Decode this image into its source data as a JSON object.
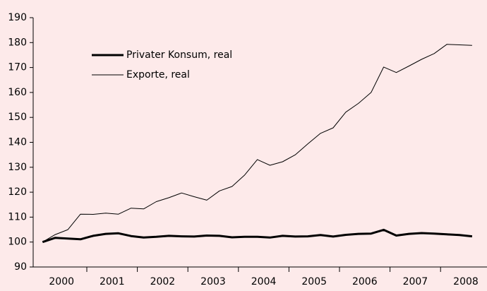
{
  "chart_data": {
    "type": "line",
    "x": [
      2000.125,
      2000.375,
      2000.625,
      2000.875,
      2001.125,
      2001.375,
      2001.625,
      2001.875,
      2002.125,
      2002.375,
      2002.625,
      2002.875,
      2003.125,
      2003.375,
      2003.625,
      2003.875,
      2004.125,
      2004.375,
      2004.625,
      2004.875,
      2005.125,
      2005.375,
      2005.625,
      2005.875,
      2006.125,
      2006.375,
      2006.625,
      2006.875,
      2007.125,
      2007.375,
      2007.625,
      2007.875,
      2008.125,
      2008.375,
      2008.625
    ],
    "series": [
      {
        "name": "Privater Konsum, real",
        "color": "#000000",
        "width": 3,
        "values": [
          100,
          101.7,
          101.4,
          101.1,
          102.5,
          103.3,
          103.5,
          102.4,
          101.8,
          102.1,
          102.5,
          102.3,
          102.2,
          102.6,
          102.5,
          101.9,
          102.1,
          102.1,
          101.8,
          102.5,
          102.2,
          102.3,
          102.8,
          102.2,
          102.9,
          103.3,
          103.4,
          104.9,
          102.6,
          103.3,
          103.6,
          103.4,
          103.1,
          102.8,
          102.3
        ]
      },
      {
        "name": "Exporte, real",
        "color": "#000000",
        "width": 1,
        "values": [
          100,
          103,
          105,
          111.2,
          111.1,
          111.6,
          111.2,
          113.6,
          113.3,
          116.2,
          117.8,
          119.7,
          118.2,
          116.8,
          120.5,
          122.3,
          126.9,
          133.1,
          130.8,
          132.2,
          135,
          139.4,
          143.6,
          145.8,
          152.1,
          155.6,
          160,
          170.2,
          168,
          170.6,
          173.3,
          175.6,
          179.3,
          179.1,
          178.9
        ]
      }
    ],
    "xlim": [
      2000,
      2009
    ],
    "xticks": [
      2001,
      2002,
      2003,
      2004,
      2005,
      2006,
      2007,
      2008
    ],
    "year_labels": [
      {
        "value": 2000.5,
        "label": "2000"
      },
      {
        "value": 2001.5,
        "label": "2001"
      },
      {
        "value": 2002.5,
        "label": "2002"
      },
      {
        "value": 2003.5,
        "label": "2003"
      },
      {
        "value": 2004.5,
        "label": "2004"
      },
      {
        "value": 2005.5,
        "label": "2005"
      },
      {
        "value": 2006.5,
        "label": "2006"
      },
      {
        "value": 2007.5,
        "label": "2007"
      },
      {
        "value": 2008.5,
        "label": "2008"
      }
    ],
    "ylim": [
      90,
      190
    ],
    "yticks": [
      90,
      100,
      110,
      120,
      130,
      140,
      150,
      160,
      170,
      180,
      190
    ],
    "grid": false
  }
}
